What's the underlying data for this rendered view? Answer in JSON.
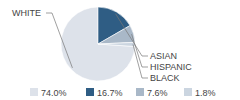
{
  "chart_data": {
    "type": "pie",
    "categories": [
      "WHITE",
      "ASIAN",
      "HISPANIC",
      "BLACK"
    ],
    "values": [
      74.0,
      16.7,
      7.6,
      1.8
    ],
    "value_labels": [
      "74.0%",
      "16.7%",
      "7.6%",
      "1.8%"
    ],
    "colors": [
      "#dde2ea",
      "#2f5d84",
      "#a9b8c8",
      "#cbd5e0"
    ],
    "legend": "bottom"
  }
}
